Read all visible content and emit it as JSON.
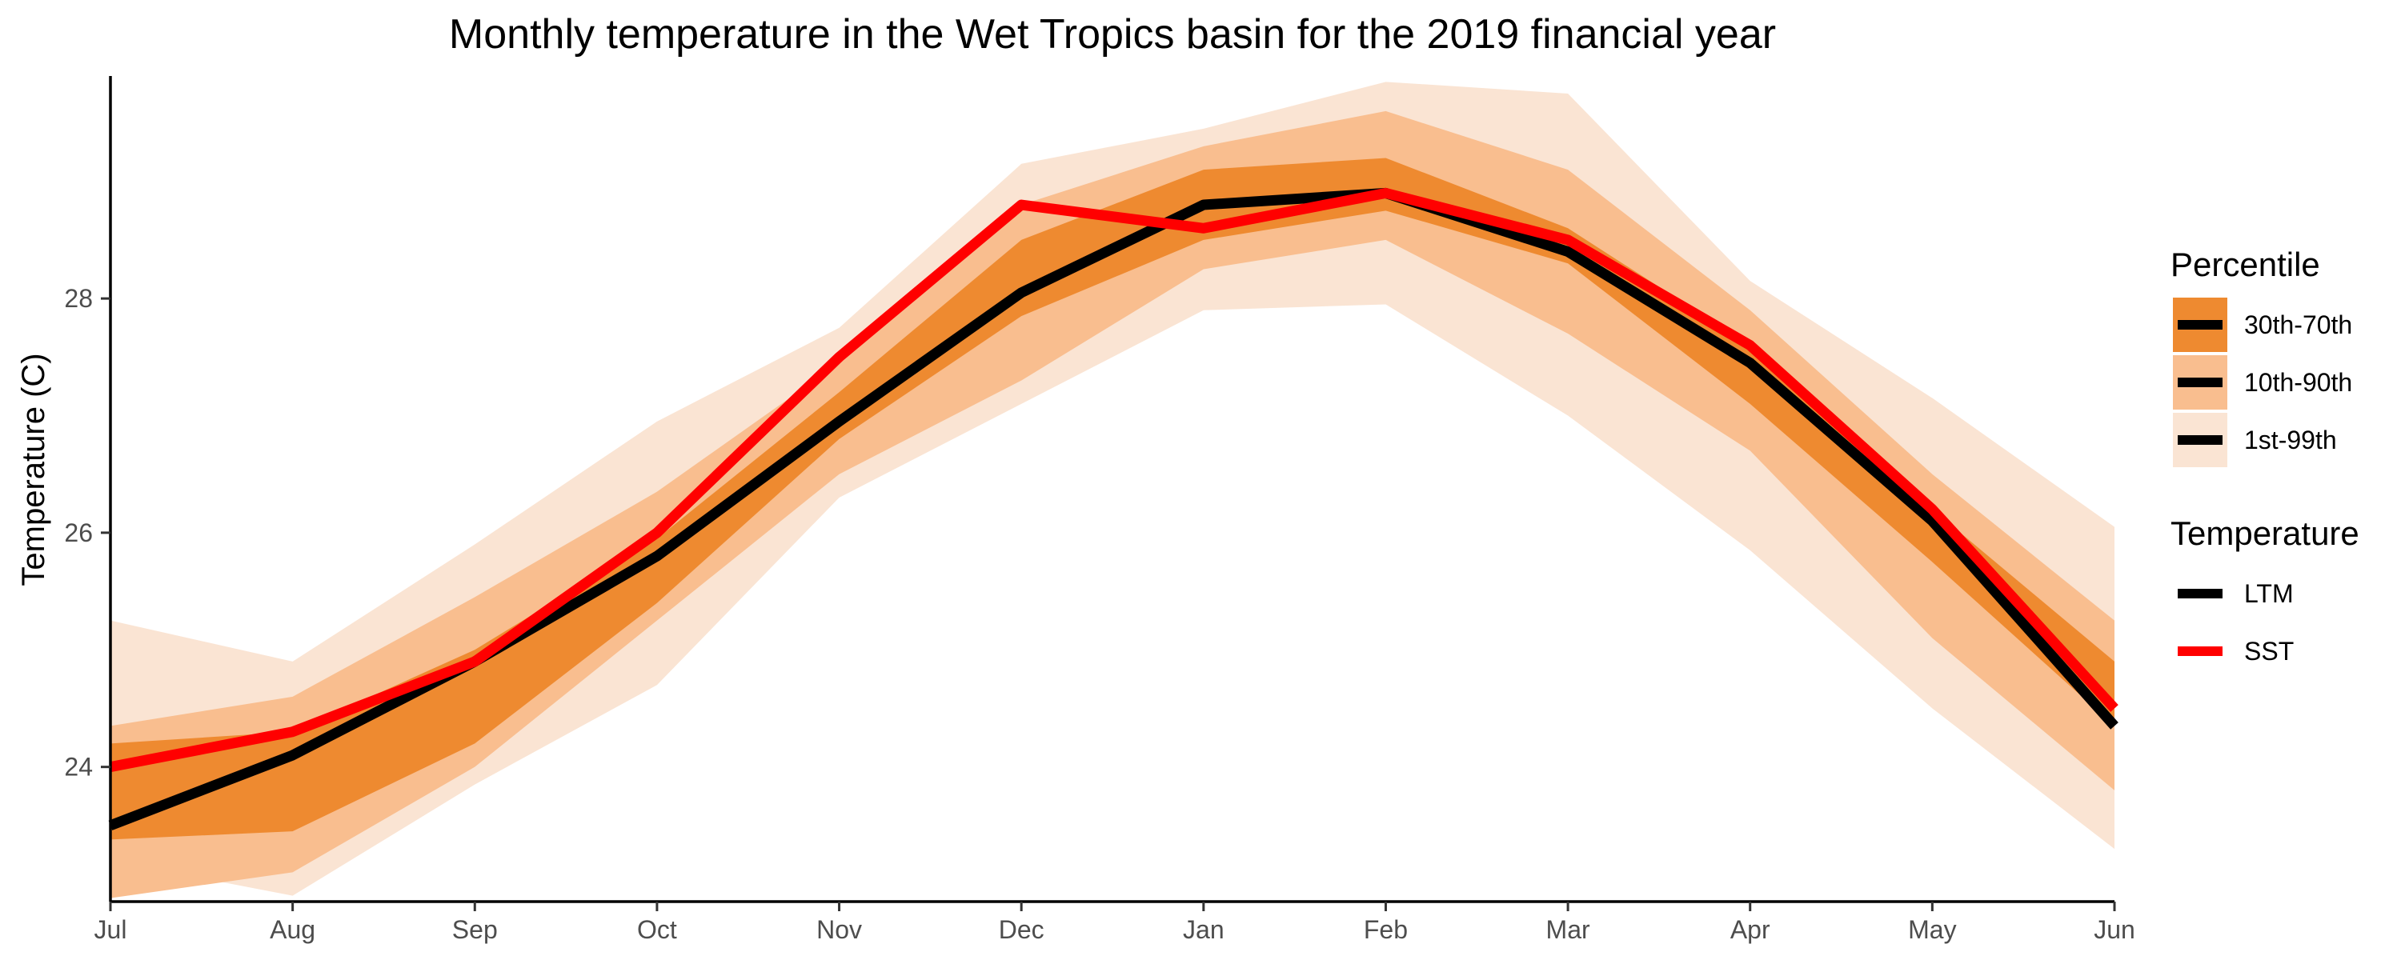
{
  "chart_data": {
    "type": "line",
    "title": "Monthly temperature in the Wet Tropics basin for the 2019 financial year",
    "xlabel": "",
    "ylabel": "Temperature (C)",
    "categories": [
      "Jul",
      "Aug",
      "Sep",
      "Oct",
      "Nov",
      "Dec",
      "Jan",
      "Feb",
      "Mar",
      "Apr",
      "May",
      "Jun"
    ],
    "ylim": [
      22.85,
      29.9
    ],
    "yticks": [
      24,
      26,
      28
    ],
    "grid": false,
    "legend_position": "right",
    "bands": [
      {
        "name": "1st-99th",
        "color": "#FAE4D3",
        "low": [
          23.2,
          22.9,
          23.85,
          24.7,
          26.3,
          27.1,
          27.9,
          27.95,
          27.0,
          25.85,
          24.5,
          23.3
        ],
        "high": [
          25.25,
          24.9,
          25.9,
          26.95,
          27.75,
          29.15,
          29.45,
          29.85,
          29.75,
          28.15,
          27.15,
          26.05
        ]
      },
      {
        "name": "10th-90th",
        "color": "#F9BE8F",
        "low": [
          22.88,
          23.1,
          24.0,
          25.25,
          26.5,
          27.3,
          28.25,
          28.5,
          27.7,
          26.7,
          25.1,
          23.8
        ],
        "high": [
          24.35,
          24.6,
          25.45,
          26.35,
          27.45,
          28.8,
          29.3,
          29.6,
          29.1,
          27.9,
          26.5,
          25.25
        ]
      },
      {
        "name": "30th-70th",
        "color": "#EE8A30",
        "low": [
          23.38,
          23.45,
          24.2,
          25.4,
          26.8,
          27.85,
          28.5,
          28.75,
          28.3,
          27.1,
          25.75,
          24.35
        ],
        "high": [
          24.2,
          24.3,
          25.0,
          25.95,
          27.2,
          28.5,
          29.1,
          29.2,
          28.6,
          27.6,
          26.2,
          24.9
        ]
      }
    ],
    "series": [
      {
        "name": "LTM",
        "color": "#000000",
        "values": [
          23.5,
          24.1,
          24.9,
          25.8,
          26.95,
          28.05,
          28.8,
          28.9,
          28.4,
          27.45,
          26.1,
          24.35
        ]
      },
      {
        "name": "SST",
        "color": "#FF0000",
        "values": [
          24.0,
          24.3,
          24.9,
          26.0,
          27.5,
          28.8,
          28.6,
          28.9,
          28.5,
          27.6,
          26.2,
          24.5
        ]
      }
    ],
    "legend": {
      "groups": [
        {
          "title": "Percentile",
          "items": [
            "30th-70th",
            "10th-90th",
            "1st-99th"
          ]
        },
        {
          "title": "Temperature",
          "items": [
            "LTM",
            "SST"
          ]
        }
      ]
    }
  }
}
